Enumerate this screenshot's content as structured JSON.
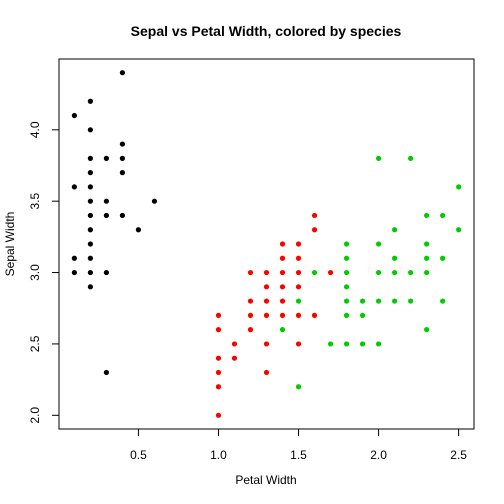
{
  "chart_data": {
    "type": "scatter",
    "title": "Sepal vs Petal Width, colored by species",
    "xlabel": "Petal Width",
    "ylabel": "Sepal Width",
    "xlim": [
      0.1,
      2.5
    ],
    "ylim": [
      2.0,
      4.4
    ],
    "x_ticks": [
      0.5,
      1.0,
      1.5,
      2.0,
      2.5
    ],
    "x_tick_labels": [
      "0.5",
      "1.0",
      "1.5",
      "2.0",
      "2.5"
    ],
    "y_ticks": [
      2.0,
      2.5,
      3.0,
      3.5,
      4.0
    ],
    "y_tick_labels": [
      "2.0",
      "2.5",
      "3.0",
      "3.5",
      "4.0"
    ],
    "grid": false,
    "legend": "none",
    "series": [
      {
        "color": "#000000",
        "points": [
          [
            0.1,
            3.0
          ],
          [
            0.1,
            3.1
          ],
          [
            0.1,
            3.6
          ],
          [
            0.1,
            4.1
          ],
          [
            0.2,
            2.9
          ],
          [
            0.2,
            3.0
          ],
          [
            0.2,
            3.1
          ],
          [
            0.2,
            3.2
          ],
          [
            0.2,
            3.3
          ],
          [
            0.2,
            3.4
          ],
          [
            0.2,
            3.5
          ],
          [
            0.2,
            3.6
          ],
          [
            0.2,
            3.7
          ],
          [
            0.2,
            3.8
          ],
          [
            0.2,
            4.0
          ],
          [
            0.2,
            4.2
          ],
          [
            0.3,
            2.3
          ],
          [
            0.3,
            3.0
          ],
          [
            0.3,
            3.4
          ],
          [
            0.3,
            3.5
          ],
          [
            0.3,
            3.8
          ],
          [
            0.4,
            3.4
          ],
          [
            0.4,
            3.7
          ],
          [
            0.4,
            3.8
          ],
          [
            0.4,
            3.9
          ],
          [
            0.4,
            4.4
          ],
          [
            0.5,
            3.3
          ],
          [
            0.6,
            3.5
          ]
        ]
      },
      {
        "color": "#ff0000",
        "points": [
          [
            1.0,
            2.0
          ],
          [
            1.0,
            2.2
          ],
          [
            1.0,
            2.3
          ],
          [
            1.0,
            2.4
          ],
          [
            1.0,
            2.6
          ],
          [
            1.0,
            2.7
          ],
          [
            1.1,
            2.4
          ],
          [
            1.1,
            2.5
          ],
          [
            1.2,
            2.6
          ],
          [
            1.2,
            2.7
          ],
          [
            1.2,
            2.8
          ],
          [
            1.2,
            3.0
          ],
          [
            1.3,
            2.3
          ],
          [
            1.3,
            2.5
          ],
          [
            1.3,
            2.7
          ],
          [
            1.3,
            2.8
          ],
          [
            1.3,
            2.9
          ],
          [
            1.3,
            3.0
          ],
          [
            1.4,
            2.7
          ],
          [
            1.4,
            2.8
          ],
          [
            1.4,
            2.9
          ],
          [
            1.4,
            3.0
          ],
          [
            1.4,
            3.1
          ],
          [
            1.4,
            3.2
          ],
          [
            1.5,
            2.5
          ],
          [
            1.5,
            2.7
          ],
          [
            1.5,
            2.9
          ],
          [
            1.5,
            3.0
          ],
          [
            1.5,
            3.1
          ],
          [
            1.5,
            3.2
          ],
          [
            1.6,
            2.7
          ],
          [
            1.6,
            3.3
          ],
          [
            1.6,
            3.4
          ],
          [
            1.7,
            3.0
          ]
        ]
      },
      {
        "color": "#00cd00",
        "points": [
          [
            1.4,
            2.6
          ],
          [
            1.5,
            2.2
          ],
          [
            1.5,
            2.8
          ],
          [
            1.6,
            3.0
          ],
          [
            1.7,
            2.5
          ],
          [
            1.8,
            2.5
          ],
          [
            1.8,
            2.7
          ],
          [
            1.8,
            2.8
          ],
          [
            1.8,
            2.9
          ],
          [
            1.8,
            3.0
          ],
          [
            1.8,
            3.1
          ],
          [
            1.8,
            3.2
          ],
          [
            1.9,
            2.5
          ],
          [
            1.9,
            2.7
          ],
          [
            1.9,
            2.8
          ],
          [
            2.0,
            2.5
          ],
          [
            2.0,
            2.8
          ],
          [
            2.0,
            3.0
          ],
          [
            2.0,
            3.2
          ],
          [
            2.0,
            3.8
          ],
          [
            2.1,
            2.8
          ],
          [
            2.1,
            3.0
          ],
          [
            2.1,
            3.1
          ],
          [
            2.1,
            3.3
          ],
          [
            2.2,
            2.8
          ],
          [
            2.2,
            3.0
          ],
          [
            2.2,
            3.8
          ],
          [
            2.3,
            2.6
          ],
          [
            2.3,
            3.0
          ],
          [
            2.3,
            3.1
          ],
          [
            2.3,
            3.2
          ],
          [
            2.3,
            3.4
          ],
          [
            2.4,
            2.8
          ],
          [
            2.4,
            3.1
          ],
          [
            2.4,
            3.4
          ],
          [
            2.5,
            3.3
          ],
          [
            2.5,
            3.6
          ]
        ]
      }
    ]
  }
}
